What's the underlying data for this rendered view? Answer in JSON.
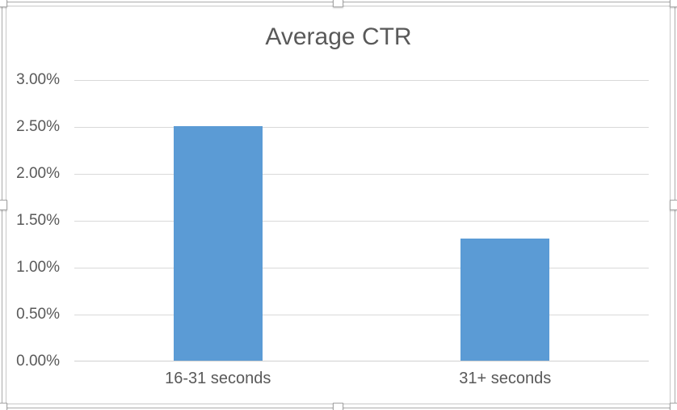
{
  "chart_data": {
    "type": "bar",
    "title": "Average CTR",
    "categories": [
      "16-31 seconds",
      "31+ seconds"
    ],
    "values": [
      2.5,
      1.3
    ],
    "value_unit": "percent",
    "xlabel": "",
    "ylabel": "",
    "ylim": [
      0,
      3.0
    ],
    "ytick_step": 0.5,
    "ytick_labels": [
      "0.00%",
      "0.50%",
      "1.00%",
      "1.50%",
      "2.00%",
      "2.50%",
      "3.00%"
    ],
    "grid": true,
    "legend": false
  },
  "colors": {
    "background": "#ffffff",
    "bar": "#5b9bd5",
    "text": "#595959",
    "gridline": "#d9d9d9",
    "axis_line": "#d0d0d0",
    "selection_frame": "#ababab",
    "chart_border": "#c9c9c9",
    "handle_border": "#a6a6a6"
  },
  "selection": {
    "state": "chart-selected",
    "handle_names": [
      "top-left",
      "top-center",
      "top-right",
      "mid-left",
      "mid-right",
      "bottom-left",
      "bottom-center",
      "bottom-right"
    ]
  }
}
